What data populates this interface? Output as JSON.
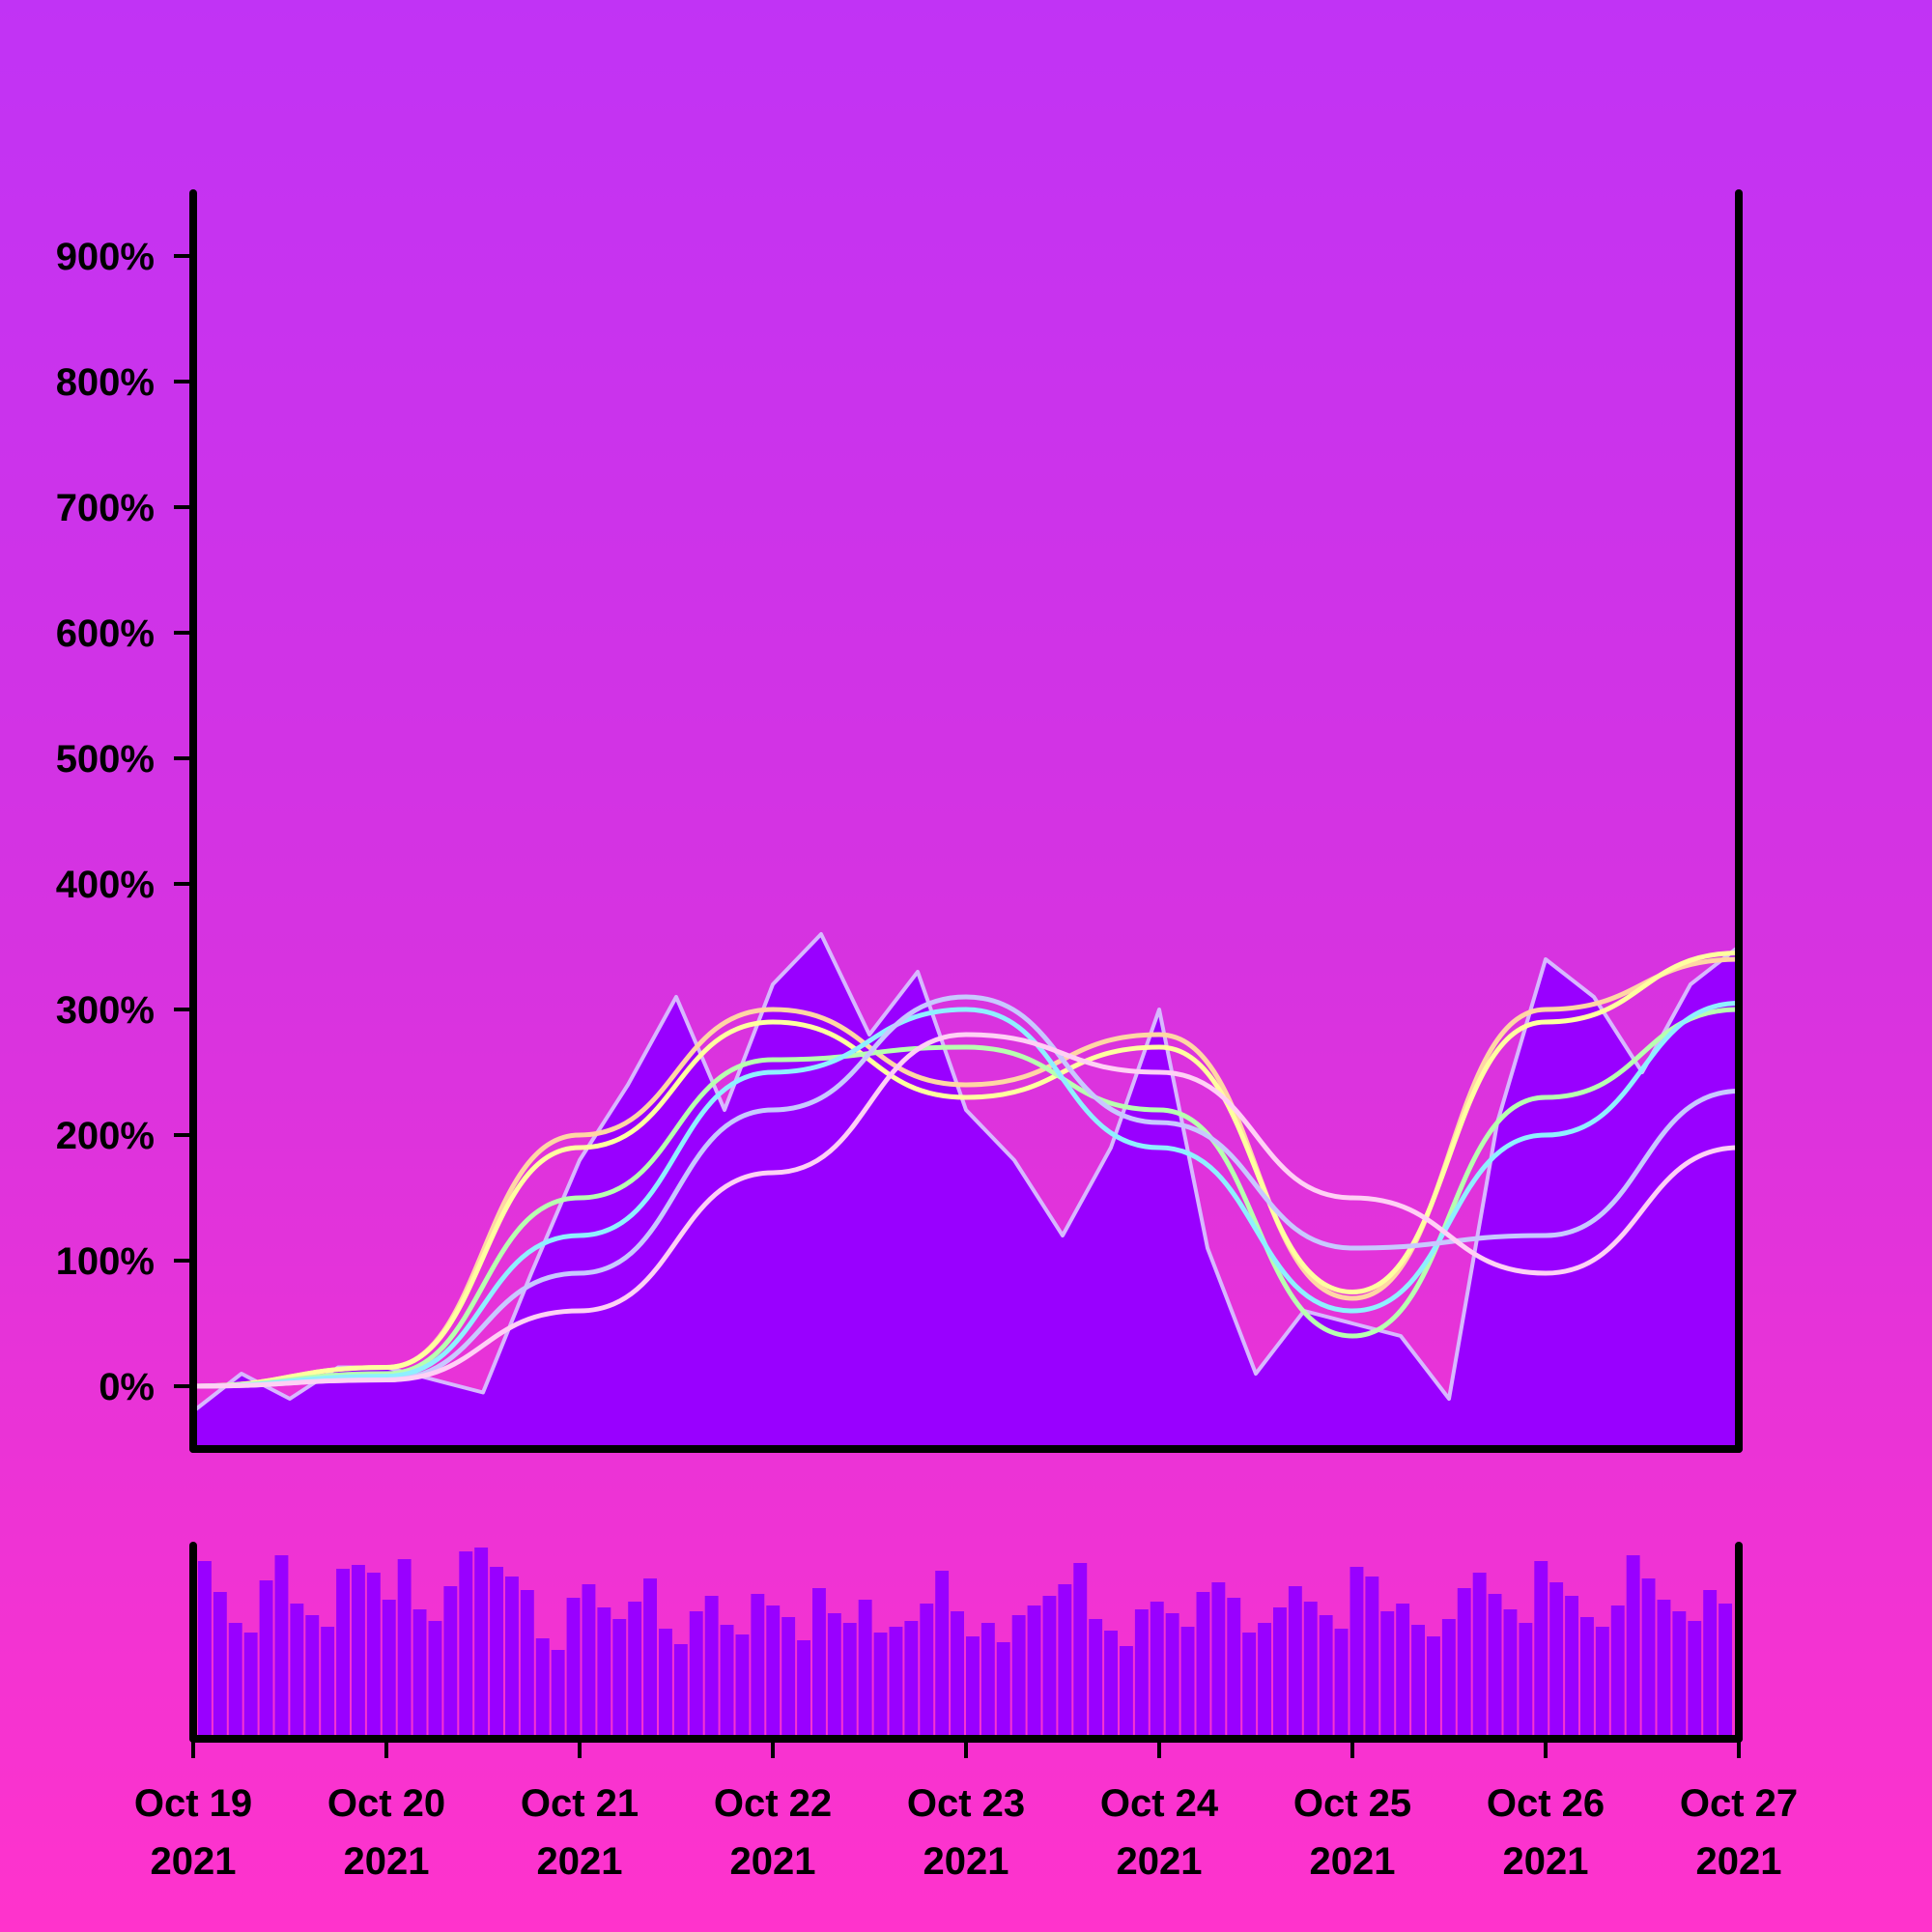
{
  "chart_data": {
    "type": "line",
    "title": "",
    "xlabel": "",
    "ylabel": "",
    "x_tick_labels": [
      {
        "date": "2021-10-19",
        "line1": "Oct 19",
        "line2": "2021"
      },
      {
        "date": "2021-10-20",
        "line1": "Oct 20",
        "line2": "2021"
      },
      {
        "date": "2021-10-21",
        "line1": "Oct 21",
        "line2": "2021"
      },
      {
        "date": "2021-10-22",
        "line1": "Oct 22",
        "line2": "2021"
      },
      {
        "date": "2021-10-23",
        "line1": "Oct 23",
        "line2": "2021"
      },
      {
        "date": "2021-10-24",
        "line1": "Oct 24",
        "line2": "2021"
      },
      {
        "date": "2021-10-25",
        "line1": "Oct 25",
        "line2": "2021"
      },
      {
        "date": "2021-10-26",
        "line1": "Oct 26",
        "line2": "2021"
      },
      {
        "date": "2021-10-27",
        "line1": "Oct 27",
        "line2": "2021"
      }
    ],
    "y_tick_labels": [
      "0%",
      "100%",
      "200%",
      "300%",
      "400%",
      "500%",
      "600%",
      "700%",
      "800%",
      "900%"
    ],
    "y_tick_values": [
      0,
      100,
      200,
      300,
      400,
      500,
      600,
      700,
      800,
      900
    ],
    "xlim": [
      "2021-10-19",
      "2021-10-27"
    ],
    "ylim": [
      -50,
      950
    ],
    "grid": false,
    "legend": "none",
    "price_series": {
      "x": [
        "2021-10-19 00:00",
        "2021-10-19 06:00",
        "2021-10-19 12:00",
        "2021-10-19 18:00",
        "2021-10-20 00:00",
        "2021-10-20 06:00",
        "2021-10-20 12:00",
        "2021-10-20 18:00",
        "2021-10-21 00:00",
        "2021-10-21 06:00",
        "2021-10-21 12:00",
        "2021-10-21 18:00",
        "2021-10-22 00:00",
        "2021-10-22 06:00",
        "2021-10-22 12:00",
        "2021-10-22 18:00",
        "2021-10-23 00:00",
        "2021-10-23 06:00",
        "2021-10-23 12:00",
        "2021-10-23 18:00",
        "2021-10-24 00:00",
        "2021-10-24 06:00",
        "2021-10-24 12:00",
        "2021-10-24 18:00",
        "2021-10-25 00:00",
        "2021-10-25 06:00",
        "2021-10-25 12:00",
        "2021-10-25 18:00",
        "2021-10-26 00:00",
        "2021-10-26 06:00",
        "2021-10-26 12:00",
        "2021-10-26 18:00",
        "2021-10-27 00:00"
      ],
      "values": [
        -20,
        10,
        -10,
        15,
        15,
        5,
        -5,
        90,
        180,
        240,
        310,
        220,
        320,
        360,
        280,
        330,
        220,
        180,
        120,
        190,
        300,
        110,
        10,
        60,
        50,
        40,
        -10,
        210,
        340,
        310,
        250,
        320,
        350
      ]
    },
    "moving_averages": [
      {
        "color": "#ffd6a5",
        "x_index": [
          0,
          4,
          8,
          12,
          16,
          20,
          24,
          28,
          32
        ],
        "values": [
          0,
          15,
          200,
          300,
          240,
          280,
          70,
          300,
          340
        ]
      },
      {
        "color": "#ffffa0",
        "x_index": [
          0,
          4,
          8,
          12,
          16,
          20,
          24,
          28,
          32
        ],
        "values": [
          0,
          15,
          190,
          290,
          230,
          270,
          75,
          290,
          345
        ]
      },
      {
        "color": "#b8ffb0",
        "x_index": [
          0,
          4,
          8,
          12,
          16,
          20,
          24,
          28,
          32
        ],
        "values": [
          0,
          10,
          150,
          260,
          270,
          220,
          40,
          230,
          300
        ]
      },
      {
        "color": "#8ff0ff",
        "x_index": [
          0,
          4,
          8,
          12,
          16,
          20,
          24,
          28,
          32
        ],
        "values": [
          0,
          8,
          120,
          250,
          300,
          190,
          60,
          200,
          305
        ]
      },
      {
        "color": "#c8c8ff",
        "x_index": [
          0,
          4,
          8,
          12,
          16,
          20,
          24,
          28,
          32
        ],
        "values": [
          0,
          5,
          90,
          220,
          310,
          210,
          110,
          120,
          235
        ]
      },
      {
        "color": "#ffd0f5",
        "x_index": [
          0,
          4,
          8,
          12,
          16,
          20,
          24,
          28,
          32
        ],
        "values": [
          0,
          5,
          60,
          170,
          280,
          250,
          150,
          90,
          190
        ]
      }
    ],
    "volume": {
      "ylim": [
        0,
        100
      ],
      "values": [
        92,
        76,
        60,
        55,
        82,
        95,
        70,
        64,
        58,
        88,
        90,
        86,
        72,
        93,
        67,
        61,
        79,
        97,
        99,
        89,
        84,
        77,
        52,
        46,
        73,
        80,
        68,
        62,
        71,
        83,
        57,
        49,
        66,
        74,
        59,
        54,
        75,
        69,
        63,
        51,
        78,
        65,
        60,
        72,
        55,
        58,
        61,
        70,
        87,
        66,
        53,
        60,
        50,
        64,
        69,
        74,
        80,
        91,
        62,
        56,
        48,
        67,
        71,
        65,
        58,
        76,
        81,
        73,
        55,
        60,
        68,
        79,
        71,
        64,
        57,
        89,
        84,
        66,
        70,
        59,
        53,
        62,
        78,
        86,
        75,
        67,
        60,
        92,
        81,
        74,
        63,
        58,
        69,
        95,
        83,
        72,
        66,
        61,
        77,
        70
      ]
    }
  }
}
